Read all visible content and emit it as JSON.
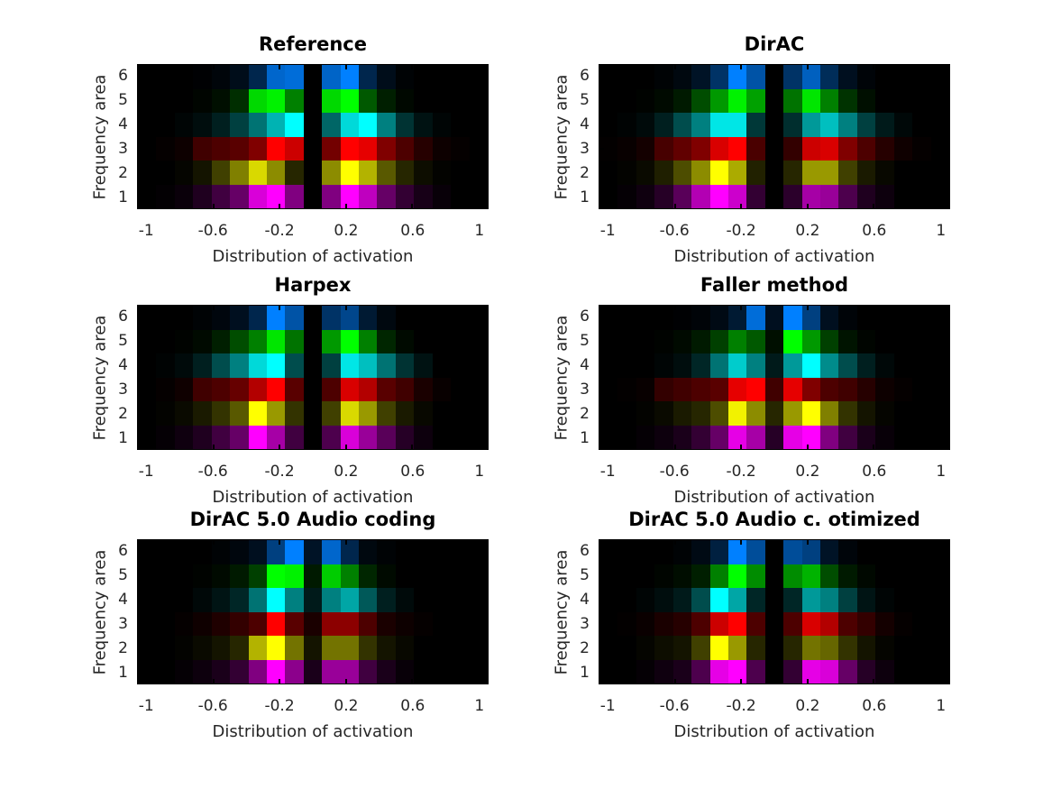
{
  "figure": {
    "background": "#ffffff",
    "plot_background": "#000000",
    "tick_text_color": "#262626",
    "title_color": "#000000"
  },
  "axis": {
    "xlabel": "Distribution of activation",
    "ylabel": "Frequency area",
    "xticks": [
      -1,
      -0.6,
      -0.2,
      0.2,
      0.6,
      1
    ],
    "xtick_labels": [
      "-1",
      "-0.6",
      "-0.2",
      "0.2",
      "0.6",
      "1"
    ],
    "ytick_labels": [
      "6",
      "5",
      "4",
      "3",
      "2",
      "1"
    ],
    "xlim": [
      -1.056,
      1.056
    ],
    "grid": "off",
    "n_bins": 19
  },
  "chart_data": [
    {
      "type": "heatmap",
      "title": "Reference",
      "x_bin_centers_range": [
        -1,
        1
      ],
      "rows": [
        {
          "frequency_area": 6,
          "base_color": "#0080ff",
          "values": [
            0,
            0,
            0,
            0.01,
            0.04,
            0.1,
            0.3,
            0.8,
            0.85,
            0,
            0.78,
            1.0,
            0.3,
            0.1,
            0.02,
            0,
            0,
            0,
            0
          ]
        },
        {
          "frequency_area": 5,
          "base_color": "#00ff00",
          "values": [
            0,
            0,
            0,
            0.02,
            0.06,
            0.18,
            0.85,
            0.95,
            0.5,
            0,
            0.85,
            1.0,
            0.35,
            0.12,
            0.03,
            0,
            0,
            0,
            0
          ]
        },
        {
          "frequency_area": 4,
          "base_color": "#00ffff",
          "values": [
            0,
            0,
            0.02,
            0.05,
            0.12,
            0.25,
            0.45,
            0.7,
            1.0,
            0,
            0.4,
            0.85,
            1.0,
            0.5,
            0.2,
            0.07,
            0.02,
            0,
            0
          ]
        },
        {
          "frequency_area": 3,
          "base_color": "#ff0000",
          "values": [
            0,
            0.02,
            0.05,
            0.25,
            0.3,
            0.35,
            0.5,
            1.0,
            0.8,
            0,
            0.45,
            1.0,
            0.9,
            0.5,
            0.3,
            0.15,
            0.05,
            0.02,
            0
          ]
        },
        {
          "frequency_area": 2,
          "base_color": "#ffff00",
          "values": [
            0,
            0,
            0.02,
            0.08,
            0.25,
            0.5,
            0.85,
            0.55,
            0.15,
            0,
            0.55,
            1.0,
            0.7,
            0.35,
            0.15,
            0.05,
            0.01,
            0,
            0
          ]
        },
        {
          "frequency_area": 1,
          "base_color": "#ff00ff",
          "values": [
            0,
            0.01,
            0.04,
            0.12,
            0.25,
            0.4,
            0.85,
            1.0,
            0.5,
            0,
            0.5,
            1.0,
            0.75,
            0.4,
            0.2,
            0.09,
            0.03,
            0,
            0
          ]
        }
      ]
    },
    {
      "type": "heatmap",
      "title": "DirAC",
      "x_bin_centers_range": [
        -1,
        1
      ],
      "rows": [
        {
          "frequency_area": 6,
          "base_color": "#0080ff",
          "values": [
            0,
            0,
            0,
            0.02,
            0.06,
            0.15,
            0.4,
            1.0,
            0.65,
            0,
            0.4,
            0.75,
            0.35,
            0.12,
            0.03,
            0,
            0,
            0,
            0
          ]
        },
        {
          "frequency_area": 5,
          "base_color": "#00ff00",
          "values": [
            0,
            0,
            0.01,
            0.04,
            0.1,
            0.3,
            0.6,
            0.95,
            0.63,
            0,
            0.45,
            0.9,
            0.5,
            0.2,
            0.06,
            0,
            0,
            0,
            0
          ]
        },
        {
          "frequency_area": 4,
          "base_color": "#00ffff",
          "values": [
            0,
            0.01,
            0.04,
            0.12,
            0.3,
            0.5,
            0.9,
            0.9,
            0.22,
            0,
            0.18,
            0.6,
            0.75,
            0.5,
            0.25,
            0.1,
            0.03,
            0,
            0
          ]
        },
        {
          "frequency_area": 3,
          "base_color": "#ff0000",
          "values": [
            0.01,
            0.03,
            0.08,
            0.28,
            0.38,
            0.5,
            0.85,
            1.0,
            0.29,
            0,
            0.2,
            0.8,
            0.85,
            0.5,
            0.3,
            0.15,
            0.06,
            0.02,
            0
          ]
        },
        {
          "frequency_area": 2,
          "base_color": "#ffff00",
          "values": [
            0,
            0.01,
            0.04,
            0.12,
            0.3,
            0.55,
            1.0,
            0.67,
            0.13,
            0,
            0.15,
            0.6,
            0.6,
            0.25,
            0.1,
            0.03,
            0,
            0,
            0
          ]
        },
        {
          "frequency_area": 1,
          "base_color": "#ff00ff",
          "values": [
            0,
            0.02,
            0.06,
            0.15,
            0.35,
            0.7,
            1.0,
            0.8,
            0.2,
            0,
            0.17,
            0.65,
            0.6,
            0.3,
            0.12,
            0.05,
            0,
            0,
            0
          ]
        }
      ]
    },
    {
      "type": "heatmap",
      "title": "Harpex",
      "x_bin_centers_range": [
        -1,
        1
      ],
      "rows": [
        {
          "frequency_area": 6,
          "base_color": "#0080ff",
          "values": [
            0,
            0,
            0,
            0.02,
            0.05,
            0.12,
            0.3,
            1.0,
            0.65,
            0,
            0.4,
            0.55,
            0.2,
            0.06,
            0,
            0,
            0,
            0,
            0
          ]
        },
        {
          "frequency_area": 5,
          "base_color": "#00ff00",
          "values": [
            0,
            0,
            0.01,
            0.04,
            0.12,
            0.3,
            0.5,
            0.9,
            0.45,
            0,
            0.6,
            1.0,
            0.5,
            0.15,
            0.04,
            0,
            0,
            0,
            0
          ]
        },
        {
          "frequency_area": 4,
          "base_color": "#00ffff",
          "values": [
            0,
            0.01,
            0.04,
            0.12,
            0.3,
            0.5,
            0.85,
            1.0,
            0.3,
            0,
            0.25,
            0.9,
            0.75,
            0.45,
            0.2,
            0.07,
            0,
            0,
            0
          ]
        },
        {
          "frequency_area": 3,
          "base_color": "#ff0000",
          "values": [
            0,
            0.02,
            0.06,
            0.25,
            0.3,
            0.4,
            0.7,
            1.0,
            0.35,
            0,
            0.3,
            0.85,
            0.7,
            0.35,
            0.25,
            0.1,
            0.03,
            0,
            0
          ]
        },
        {
          "frequency_area": 2,
          "base_color": "#ffff00",
          "values": [
            0,
            0.01,
            0.04,
            0.1,
            0.2,
            0.35,
            1.0,
            0.6,
            0.2,
            0,
            0.25,
            0.85,
            0.6,
            0.25,
            0.1,
            0.03,
            0,
            0,
            0
          ]
        },
        {
          "frequency_area": 1,
          "base_color": "#ff00ff",
          "values": [
            0,
            0.02,
            0.06,
            0.12,
            0.25,
            0.4,
            1.0,
            0.65,
            0.25,
            0,
            0.3,
            0.85,
            0.6,
            0.35,
            0.15,
            0.05,
            0,
            0,
            0
          ]
        }
      ]
    },
    {
      "type": "heatmap",
      "title": "Faller method",
      "x_bin_centers_range": [
        -1,
        1
      ],
      "rows": [
        {
          "frequency_area": 6,
          "base_color": "#0080ff",
          "values": [
            0,
            0,
            0,
            0,
            0.01,
            0.03,
            0.08,
            0.2,
            0.85,
            0.12,
            1.0,
            0.5,
            0.12,
            0.03,
            0,
            0,
            0,
            0,
            0
          ]
        },
        {
          "frequency_area": 5,
          "base_color": "#00ff00",
          "values": [
            0,
            0,
            0,
            0.01,
            0.04,
            0.1,
            0.25,
            0.5,
            0.35,
            0.06,
            1.0,
            0.6,
            0.25,
            0.08,
            0.02,
            0,
            0,
            0,
            0
          ]
        },
        {
          "frequency_area": 4,
          "base_color": "#00ffff",
          "values": [
            0,
            0,
            0,
            0.02,
            0.05,
            0.15,
            0.45,
            0.8,
            0.5,
            0.1,
            0.6,
            1.0,
            0.55,
            0.3,
            0.12,
            0.03,
            0,
            0,
            0
          ]
        },
        {
          "frequency_area": 3,
          "base_color": "#ff0000",
          "values": [
            0,
            0.01,
            0.03,
            0.2,
            0.25,
            0.3,
            0.35,
            0.9,
            1.0,
            0.25,
            0.9,
            0.5,
            0.3,
            0.25,
            0.15,
            0.05,
            0.02,
            0,
            0
          ]
        },
        {
          "frequency_area": 2,
          "base_color": "#ffff00",
          "values": [
            0,
            0,
            0.01,
            0.04,
            0.1,
            0.15,
            0.3,
            0.95,
            0.55,
            0.15,
            0.6,
            1.0,
            0.5,
            0.2,
            0.08,
            0.02,
            0,
            0,
            0
          ]
        },
        {
          "frequency_area": 1,
          "base_color": "#ff00ff",
          "values": [
            0,
            0,
            0.02,
            0.05,
            0.1,
            0.2,
            0.4,
            0.9,
            0.65,
            0.15,
            0.9,
            1.0,
            0.5,
            0.25,
            0.1,
            0.03,
            0,
            0,
            0
          ]
        }
      ]
    },
    {
      "type": "heatmap",
      "title": "DirAC 5.0 Audio coding",
      "x_bin_centers_range": [
        -1,
        1
      ],
      "rows": [
        {
          "frequency_area": 6,
          "base_color": "#0080ff",
          "values": [
            0,
            0,
            0,
            0,
            0.02,
            0.05,
            0.12,
            0.5,
            1.0,
            0.15,
            0.8,
            0.3,
            0.06,
            0.02,
            0,
            0,
            0,
            0,
            0
          ]
        },
        {
          "frequency_area": 5,
          "base_color": "#00ff00",
          "values": [
            0,
            0,
            0,
            0.01,
            0.04,
            0.1,
            0.25,
            1.0,
            0.95,
            0.1,
            0.8,
            0.5,
            0.15,
            0.04,
            0,
            0,
            0,
            0,
            0
          ]
        },
        {
          "frequency_area": 4,
          "base_color": "#00ffff",
          "values": [
            0,
            0,
            0,
            0.03,
            0.08,
            0.15,
            0.45,
            1.0,
            0.5,
            0.1,
            0.5,
            0.65,
            0.35,
            0.12,
            0.04,
            0,
            0,
            0,
            0
          ]
        },
        {
          "frequency_area": 3,
          "base_color": "#ff0000",
          "values": [
            0,
            0,
            0.02,
            0.06,
            0.12,
            0.2,
            0.3,
            1.0,
            0.35,
            0.1,
            0.55,
            0.55,
            0.3,
            0.1,
            0.05,
            0.02,
            0,
            0,
            0
          ]
        },
        {
          "frequency_area": 2,
          "base_color": "#ffff00",
          "values": [
            0,
            0,
            0.01,
            0.04,
            0.08,
            0.15,
            0.7,
            1.0,
            0.45,
            0.08,
            0.45,
            0.45,
            0.2,
            0.08,
            0.03,
            0,
            0,
            0,
            0
          ]
        },
        {
          "frequency_area": 1,
          "base_color": "#ff00ff",
          "values": [
            0,
            0,
            0.02,
            0.05,
            0.1,
            0.2,
            0.5,
            1.0,
            0.55,
            0.1,
            0.6,
            0.6,
            0.25,
            0.1,
            0.03,
            0,
            0,
            0,
            0
          ]
        }
      ]
    },
    {
      "type": "heatmap",
      "title": "DirAC 5.0 Audio c. otimized",
      "x_bin_centers_range": [
        -1,
        1
      ],
      "rows": [
        {
          "frequency_area": 6,
          "base_color": "#0080ff",
          "values": [
            0,
            0,
            0,
            0,
            0.02,
            0.08,
            0.25,
            1.0,
            0.6,
            0,
            0.6,
            0.5,
            0.15,
            0.04,
            0,
            0,
            0,
            0,
            0
          ]
        },
        {
          "frequency_area": 5,
          "base_color": "#00ff00",
          "values": [
            0,
            0,
            0,
            0.02,
            0.05,
            0.12,
            0.5,
            1.0,
            0.55,
            0,
            0.55,
            0.7,
            0.3,
            0.1,
            0.03,
            0,
            0,
            0,
            0
          ]
        },
        {
          "frequency_area": 4,
          "base_color": "#00ffff",
          "values": [
            0,
            0,
            0.02,
            0.05,
            0.1,
            0.3,
            1.0,
            0.65,
            0.15,
            0,
            0.15,
            0.6,
            0.5,
            0.25,
            0.08,
            0.02,
            0,
            0,
            0
          ]
        },
        {
          "frequency_area": 3,
          "base_color": "#ff0000",
          "values": [
            0,
            0.01,
            0.04,
            0.1,
            0.15,
            0.3,
            0.8,
            1.0,
            0.3,
            0,
            0.3,
            0.85,
            0.7,
            0.3,
            0.2,
            0.08,
            0.02,
            0,
            0
          ]
        },
        {
          "frequency_area": 2,
          "base_color": "#ffff00",
          "values": [
            0,
            0,
            0.02,
            0.05,
            0.08,
            0.25,
            1.0,
            0.6,
            0.15,
            0,
            0.15,
            0.45,
            0.4,
            0.2,
            0.08,
            0.02,
            0,
            0,
            0
          ]
        },
        {
          "frequency_area": 1,
          "base_color": "#ff00ff",
          "values": [
            0,
            0,
            0.02,
            0.06,
            0.1,
            0.3,
            0.9,
            1.0,
            0.3,
            0,
            0.2,
            0.9,
            0.85,
            0.4,
            0.15,
            0.05,
            0,
            0,
            0
          ]
        }
      ]
    }
  ]
}
